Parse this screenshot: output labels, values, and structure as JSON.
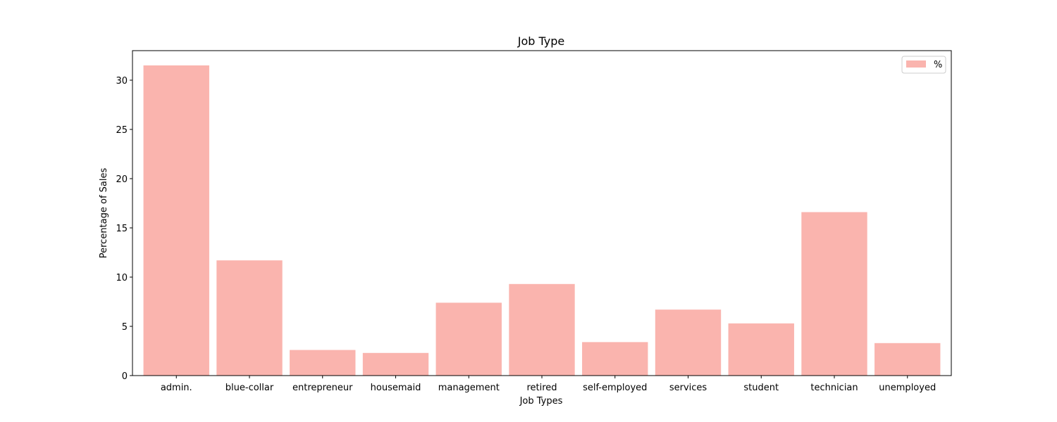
{
  "chart_data": {
    "type": "bar",
    "title": "Job Type",
    "xlabel": "Job Types",
    "ylabel": "Percentage of Sales",
    "categories": [
      "admin.",
      "blue-collar",
      "entrepreneur",
      "housemaid",
      "management",
      "retired",
      "self-employed",
      "services",
      "student",
      "technician",
      "unemployed"
    ],
    "series": [
      {
        "name": "%",
        "color": "#fab4ae",
        "values": [
          31.5,
          11.7,
          2.6,
          2.3,
          7.4,
          9.3,
          3.4,
          6.7,
          5.3,
          16.6,
          3.3
        ]
      }
    ],
    "ylim": [
      0,
      33
    ],
    "yticks": [
      0,
      5,
      10,
      15,
      20,
      25,
      30
    ],
    "grid": false,
    "legend": "top-right"
  }
}
